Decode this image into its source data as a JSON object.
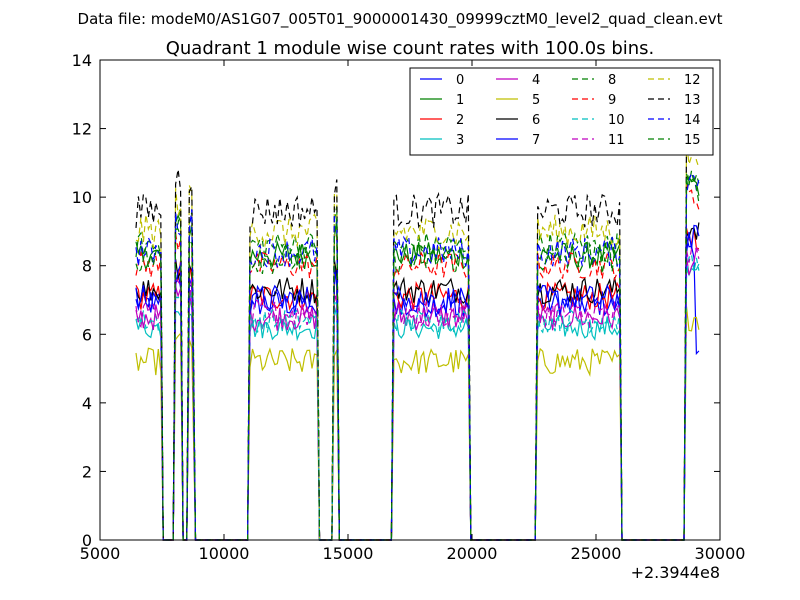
{
  "chart_data": {
    "type": "line",
    "suptitle": "Data file: modeM0/AS1G07_005T01_9000001430_09999cztM0_level2_quad_clean.evt",
    "title": "Quadrant 1 module wise count rates with 100.0s bins.",
    "xlabel": "",
    "ylabel": "",
    "x_offset_label": "+2.3944e8",
    "xlim": [
      5000,
      30000
    ],
    "ylim": [
      0,
      14
    ],
    "xticks": [
      5000,
      10000,
      15000,
      20000,
      25000,
      30000
    ],
    "yticks": [
      0,
      2,
      4,
      6,
      8,
      10,
      12,
      14
    ],
    "xtick_labels": [
      "5000",
      "10000",
      "15000",
      "20000",
      "25000",
      "30000"
    ],
    "ytick_labels": [
      "0",
      "2",
      "4",
      "6",
      "8",
      "10",
      "12",
      "14"
    ],
    "segments": [
      {
        "start": 6450,
        "end": 7450
      },
      {
        "start": 8050,
        "end": 8250
      },
      {
        "start": 8600,
        "end": 8750
      },
      {
        "start": 11050,
        "end": 13750
      },
      {
        "start": 14450,
        "end": 14550
      },
      {
        "start": 16850,
        "end": 19850
      },
      {
        "start": 22650,
        "end": 25950
      },
      {
        "start": 28650,
        "end": 29150
      }
    ],
    "series": [
      {
        "name": "0",
        "color": "#0000ff",
        "dash": "solid",
        "level": 6.9,
        "amp": 0.4
      },
      {
        "name": "1",
        "color": "#008000",
        "dash": "solid",
        "level": 8.3,
        "amp": 0.4
      },
      {
        "name": "2",
        "color": "#ff0000",
        "dash": "solid",
        "level": 7.1,
        "amp": 0.4
      },
      {
        "name": "3",
        "color": "#00bfbf",
        "dash": "solid",
        "level": 6.2,
        "amp": 0.35
      },
      {
        "name": "4",
        "color": "#bf00bf",
        "dash": "solid",
        "level": 6.5,
        "amp": 0.4
      },
      {
        "name": "5",
        "color": "#bfbf00",
        "dash": "solid",
        "level": 5.2,
        "amp": 0.4
      },
      {
        "name": "6",
        "color": "#000000",
        "dash": "solid",
        "level": 7.3,
        "amp": 0.4
      },
      {
        "name": "7",
        "color": "#0000ff",
        "dash": "solid",
        "level": 7.0,
        "amp": 0.45
      },
      {
        "name": "8",
        "color": "#008000",
        "dash": "dashed",
        "level": 8.6,
        "amp": 0.4
      },
      {
        "name": "9",
        "color": "#ff0000",
        "dash": "dashed",
        "level": 8.0,
        "amp": 0.4
      },
      {
        "name": "10",
        "color": "#00bfbf",
        "dash": "dashed",
        "level": 6.4,
        "amp": 0.35
      },
      {
        "name": "11",
        "color": "#bf00bf",
        "dash": "dashed",
        "level": 6.6,
        "amp": 0.4
      },
      {
        "name": "12",
        "color": "#bfbf00",
        "dash": "dashed",
        "level": 9.0,
        "amp": 0.5
      },
      {
        "name": "13",
        "color": "#000000",
        "dash": "dashed",
        "level": 9.6,
        "amp": 0.5
      },
      {
        "name": "14",
        "color": "#0000ff",
        "dash": "dashed",
        "level": 8.4,
        "amp": 0.45
      },
      {
        "name": "15",
        "color": "#008000",
        "dash": "dashed",
        "level": 8.2,
        "amp": 0.45
      }
    ],
    "legend": {
      "location": "top-right",
      "columns": 4
    }
  }
}
